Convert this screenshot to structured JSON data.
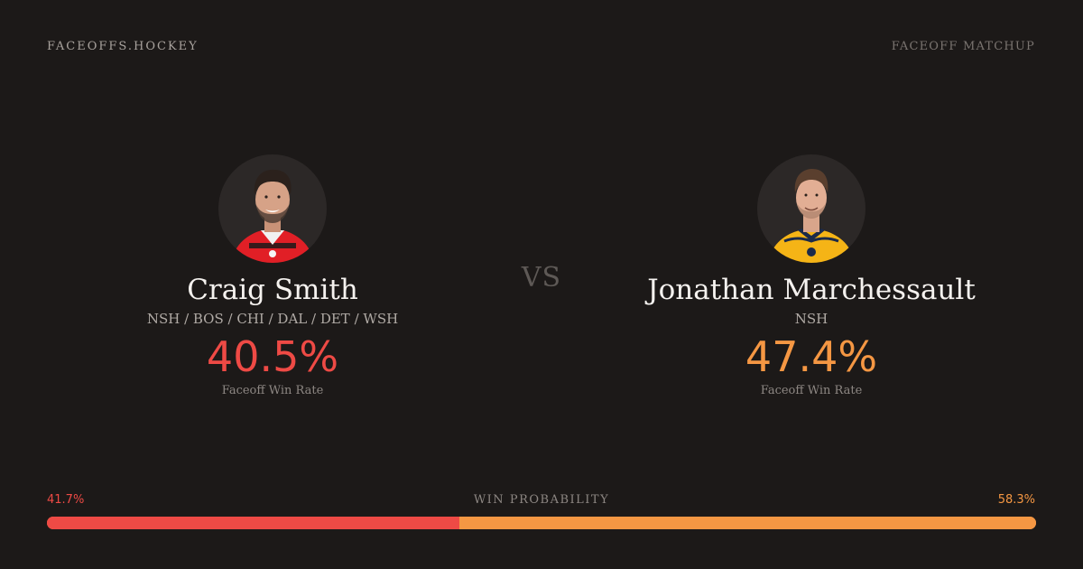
{
  "brand": "FACEOFFS.HOCKEY",
  "kicker": "FACEOFF MATCHUP",
  "vs_label": "VS",
  "players": [
    {
      "name": "Craig Smith",
      "teams": "NSH / BOS / CHI / DAL / DET / WSH",
      "win_rate": "40.5%",
      "win_rate_label": "Faceoff Win Rate",
      "jersey_color": "#e11f26"
    },
    {
      "name": "Jonathan Marchessault",
      "teams": "NSH",
      "win_rate": "47.4%",
      "win_rate_label": "Faceoff Win Rate",
      "jersey_color": "#f5b416"
    }
  ],
  "win_probability": {
    "title": "WIN PROBABILITY",
    "left_label": "41.7%",
    "right_label": "58.3%",
    "left_fraction": 0.417,
    "right_fraction": 0.583
  },
  "colors": {
    "left_accent": "#ee4a45",
    "right_accent": "#f59743",
    "background": "#1c1918"
  }
}
